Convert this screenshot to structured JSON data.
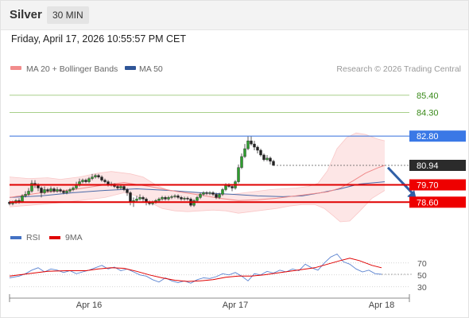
{
  "header": {
    "symbol": "Silver",
    "timeframe": "30 MIN"
  },
  "datetime": "Friday, April 17, 2026 10:55:57 PM CET",
  "legend": [
    {
      "label": "MA 20 + Bollinger Bands",
      "color": "#f28c8c"
    },
    {
      "label": "MA 50",
      "color": "#2f5597"
    }
  ],
  "copyright": "Research © 2026 Trading Central",
  "chart_data": {
    "type": "candlestick",
    "x_labels": [
      {
        "label": "Apr 16",
        "bar": 25
      },
      {
        "label": "Apr 17",
        "bar": 71
      },
      {
        "label": "Apr 18",
        "bar": 117
      }
    ],
    "ylim": [
      77.2,
      86.5
    ],
    "candles": [
      [
        78.6,
        78.5,
        78.7,
        78.4
      ],
      [
        78.5,
        78.55,
        78.7,
        78.4
      ],
      [
        78.55,
        78.7,
        78.8,
        78.5
      ],
      [
        78.7,
        78.6,
        78.85,
        78.5
      ],
      [
        78.6,
        79.0,
        79.1,
        78.55
      ],
      [
        79.0,
        79.1,
        79.3,
        78.9
      ],
      [
        79.1,
        79.3,
        79.5,
        79.0
      ],
      [
        79.3,
        79.8,
        80.0,
        79.2
      ],
      [
        79.8,
        79.7,
        80.0,
        79.5
      ],
      [
        79.7,
        79.5,
        79.8,
        79.3
      ],
      [
        79.5,
        79.2,
        79.6,
        78.9
      ],
      [
        79.2,
        79.4,
        79.6,
        79.1
      ],
      [
        79.4,
        79.3,
        79.5,
        79.2
      ],
      [
        79.3,
        79.45,
        79.6,
        79.2
      ],
      [
        79.45,
        79.3,
        79.55,
        79.2
      ],
      [
        79.3,
        79.4,
        79.55,
        79.2
      ],
      [
        79.4,
        79.3,
        79.5,
        79.2
      ],
      [
        79.3,
        79.2,
        79.4,
        79.1
      ],
      [
        79.2,
        79.3,
        79.4,
        79.1
      ],
      [
        79.3,
        79.4,
        79.5,
        79.2
      ],
      [
        79.4,
        79.5,
        79.6,
        79.3
      ],
      [
        79.5,
        79.7,
        79.9,
        79.4
      ],
      [
        79.7,
        79.9,
        80.1,
        79.6
      ],
      [
        79.9,
        80.0,
        80.1,
        79.8
      ],
      [
        80.0,
        79.9,
        80.1,
        79.8
      ],
      [
        79.9,
        80.1,
        80.2,
        79.8
      ],
      [
        80.1,
        80.2,
        80.4,
        80.0
      ],
      [
        80.2,
        80.3,
        80.4,
        80.1
      ],
      [
        80.3,
        80.2,
        80.4,
        80.1
      ],
      [
        80.2,
        80.0,
        80.3,
        79.9
      ],
      [
        80.0,
        79.9,
        80.1,
        79.8
      ],
      [
        79.9,
        79.7,
        80.0,
        79.6
      ],
      [
        79.7,
        79.75,
        79.9,
        79.6
      ],
      [
        79.75,
        79.6,
        79.8,
        79.5
      ],
      [
        79.6,
        79.5,
        79.7,
        79.4
      ],
      [
        79.5,
        79.6,
        79.7,
        79.4
      ],
      [
        79.6,
        79.4,
        79.7,
        79.3
      ],
      [
        79.4,
        79.2,
        79.5,
        79.0
      ],
      [
        79.2,
        78.6,
        79.3,
        78.4
      ],
      [
        78.6,
        78.7,
        78.9,
        78.3
      ],
      [
        78.7,
        78.8,
        79.0,
        78.6
      ],
      [
        78.8,
        78.9,
        79.1,
        78.7
      ],
      [
        78.9,
        78.8,
        79.0,
        78.6
      ],
      [
        78.8,
        78.6,
        78.9,
        78.4
      ],
      [
        78.6,
        78.5,
        78.7,
        78.4
      ],
      [
        78.5,
        78.6,
        78.7,
        78.4
      ],
      [
        78.6,
        78.7,
        78.8,
        78.5
      ],
      [
        78.7,
        78.8,
        78.9,
        78.6
      ],
      [
        78.8,
        78.9,
        79.0,
        78.7
      ],
      [
        78.9,
        78.8,
        79.0,
        78.7
      ],
      [
        78.8,
        78.9,
        79.0,
        78.7
      ],
      [
        78.9,
        78.95,
        79.05,
        78.8
      ],
      [
        78.95,
        79.0,
        79.1,
        78.85
      ],
      [
        79.0,
        78.9,
        79.1,
        78.8
      ],
      [
        78.9,
        78.8,
        79.0,
        78.7
      ],
      [
        78.8,
        78.85,
        78.95,
        78.7
      ],
      [
        78.85,
        78.8,
        78.95,
        78.7
      ],
      [
        78.8,
        78.4,
        78.9,
        78.3
      ],
      [
        78.4,
        78.7,
        78.8,
        78.3
      ],
      [
        78.7,
        78.9,
        79.0,
        78.6
      ],
      [
        78.9,
        79.1,
        79.2,
        78.8
      ],
      [
        79.1,
        79.2,
        79.3,
        79.0
      ],
      [
        79.2,
        79.15,
        79.3,
        79.05
      ],
      [
        79.15,
        79.2,
        79.3,
        79.05
      ],
      [
        79.2,
        79.1,
        79.3,
        79.0
      ],
      [
        79.1,
        78.9,
        79.2,
        78.8
      ],
      [
        78.9,
        79.1,
        79.2,
        78.8
      ],
      [
        79.1,
        79.4,
        79.5,
        79.0
      ],
      [
        79.4,
        79.7,
        79.8,
        79.3
      ],
      [
        79.7,
        79.6,
        79.8,
        79.5
      ],
      [
        79.6,
        79.5,
        79.7,
        79.3
      ],
      [
        79.5,
        79.9,
        80.0,
        79.4
      ],
      [
        79.9,
        80.8,
        81.0,
        79.8
      ],
      [
        80.8,
        81.5,
        81.7,
        80.7
      ],
      [
        81.5,
        82.0,
        82.3,
        81.4
      ],
      [
        82.0,
        82.5,
        82.8,
        81.9
      ],
      [
        82.5,
        82.3,
        82.8,
        82.2
      ],
      [
        82.3,
        82.1,
        82.5,
        81.9
      ],
      [
        82.1,
        81.9,
        82.2,
        81.7
      ],
      [
        81.9,
        81.6,
        82.0,
        81.5
      ],
      [
        81.6,
        81.3,
        81.7,
        81.2
      ],
      [
        81.3,
        81.4,
        81.6,
        81.2
      ],
      [
        81.4,
        81.2,
        81.5,
        81.0
      ],
      [
        81.2,
        80.94,
        81.3,
        80.9
      ]
    ],
    "ma20": [
      [
        0,
        78.9
      ],
      [
        10,
        79.2
      ],
      [
        20,
        79.4
      ],
      [
        30,
        79.7
      ],
      [
        36,
        79.85
      ],
      [
        44,
        79.6
      ],
      [
        52,
        79.3
      ],
      [
        60,
        79.05
      ],
      [
        66,
        78.85
      ],
      [
        72,
        78.7
      ],
      [
        78,
        78.75
      ],
      [
        84,
        78.85
      ],
      [
        90,
        79.0
      ],
      [
        96,
        79.15
      ],
      [
        100,
        79.25
      ],
      [
        104,
        79.5
      ],
      [
        108,
        79.95
      ],
      [
        112,
        80.45
      ],
      [
        116,
        80.8
      ],
      [
        118,
        80.94
      ]
    ],
    "bb_upper": [
      [
        0,
        80.2
      ],
      [
        6,
        80.1
      ],
      [
        12,
        80.15
      ],
      [
        16,
        80.05
      ],
      [
        22,
        80.2
      ],
      [
        28,
        80.45
      ],
      [
        32,
        80.55
      ],
      [
        38,
        80.4
      ],
      [
        42,
        80.2
      ],
      [
        46,
        79.7
      ],
      [
        50,
        79.35
      ],
      [
        54,
        79.3
      ],
      [
        58,
        79.2
      ],
      [
        62,
        79.1
      ],
      [
        66,
        79.05
      ],
      [
        70,
        79.1
      ],
      [
        74,
        79.2
      ],
      [
        78,
        79.3
      ],
      [
        82,
        79.4
      ],
      [
        86,
        79.45
      ],
      [
        90,
        79.5
      ],
      [
        94,
        79.6
      ],
      [
        97,
        79.8
      ],
      [
        100,
        80.6
      ],
      [
        103,
        82.0
      ],
      [
        106,
        82.7
      ],
      [
        109,
        83.0
      ],
      [
        112,
        82.9
      ],
      [
        116,
        82.6
      ],
      [
        118,
        82.5
      ]
    ],
    "bb_lower": [
      [
        0,
        78.3
      ],
      [
        6,
        78.4
      ],
      [
        12,
        78.5
      ],
      [
        18,
        78.6
      ],
      [
        24,
        78.75
      ],
      [
        30,
        78.9
      ],
      [
        36,
        79.2
      ],
      [
        40,
        79.0
      ],
      [
        44,
        78.6
      ],
      [
        48,
        78.2
      ],
      [
        52,
        78.05
      ],
      [
        56,
        78.0
      ],
      [
        60,
        78.05
      ],
      [
        64,
        78.1
      ],
      [
        68,
        78.05
      ],
      [
        72,
        77.9
      ],
      [
        76,
        78.0
      ],
      [
        80,
        78.1
      ],
      [
        84,
        78.2
      ],
      [
        88,
        78.35
      ],
      [
        92,
        78.45
      ],
      [
        96,
        78.45
      ],
      [
        99,
        78.2
      ],
      [
        102,
        77.7
      ],
      [
        104,
        77.35
      ],
      [
        107,
        77.4
      ],
      [
        110,
        78.0
      ],
      [
        114,
        78.85
      ],
      [
        118,
        79.35
      ]
    ],
    "ma50": [
      [
        0,
        78.9
      ],
      [
        10,
        79.0
      ],
      [
        20,
        79.2
      ],
      [
        30,
        79.35
      ],
      [
        40,
        79.45
      ],
      [
        50,
        79.35
      ],
      [
        60,
        79.2
      ],
      [
        70,
        79.1
      ],
      [
        78,
        79.0
      ],
      [
        86,
        78.95
      ],
      [
        92,
        79.0
      ],
      [
        98,
        79.2
      ],
      [
        104,
        79.45
      ],
      [
        110,
        79.75
      ],
      [
        118,
        79.9
      ]
    ],
    "levels": [
      {
        "label": "85.40",
        "value": 85.4,
        "kind": "target"
      },
      {
        "label": "84.30",
        "value": 84.3,
        "kind": "target"
      },
      {
        "label": "82.80",
        "value": 82.8,
        "kind": "pivot"
      },
      {
        "label": "80.94",
        "value": 80.94,
        "kind": "last"
      },
      {
        "label": "79.70",
        "value": 79.7,
        "kind": "support"
      },
      {
        "label": "78.60",
        "value": 78.6,
        "kind": "support"
      }
    ],
    "arrow": {
      "from": [
        119,
        80.8
      ],
      "to": [
        128,
        78.75
      ],
      "direction": "down"
    },
    "rsi": {
      "legend": [
        {
          "label": "RSI",
          "color": "#4472c4"
        },
        {
          "label": "9MA",
          "color": "#e00000"
        }
      ],
      "ylim": [
        15,
        95
      ],
      "ticks": [
        {
          "label": "70",
          "value": 70
        },
        {
          "label": "50",
          "value": 50
        },
        {
          "label": "30",
          "value": 30
        }
      ],
      "rsi_points": [
        [
          0,
          45
        ],
        [
          3,
          48
        ],
        [
          5,
          52
        ],
        [
          7,
          58
        ],
        [
          9,
          62
        ],
        [
          11,
          55
        ],
        [
          13,
          60
        ],
        [
          15,
          58
        ],
        [
          17,
          54
        ],
        [
          19,
          57
        ],
        [
          21,
          52
        ],
        [
          23,
          55
        ],
        [
          25,
          58
        ],
        [
          27,
          62
        ],
        [
          29,
          66
        ],
        [
          31,
          60
        ],
        [
          33,
          63
        ],
        [
          35,
          57
        ],
        [
          37,
          60
        ],
        [
          39,
          55
        ],
        [
          41,
          50
        ],
        [
          43,
          48
        ],
        [
          45,
          42
        ],
        [
          47,
          38
        ],
        [
          49,
          45
        ],
        [
          51,
          40
        ],
        [
          53,
          37
        ],
        [
          55,
          40
        ],
        [
          57,
          36
        ],
        [
          59,
          42
        ],
        [
          61,
          45
        ],
        [
          63,
          44
        ],
        [
          65,
          47
        ],
        [
          67,
          52
        ],
        [
          69,
          50
        ],
        [
          71,
          54
        ],
        [
          73,
          48
        ],
        [
          75,
          40
        ],
        [
          77,
          52
        ],
        [
          79,
          50
        ],
        [
          81,
          56
        ],
        [
          83,
          53
        ],
        [
          85,
          58
        ],
        [
          87,
          55
        ],
        [
          89,
          60
        ],
        [
          91,
          57
        ],
        [
          93,
          68
        ],
        [
          95,
          62
        ],
        [
          97,
          58
        ],
        [
          99,
          70
        ],
        [
          101,
          80
        ],
        [
          103,
          85
        ],
        [
          105,
          72
        ],
        [
          107,
          68
        ],
        [
          109,
          60
        ],
        [
          111,
          55
        ],
        [
          113,
          58
        ],
        [
          115,
          52
        ],
        [
          117,
          51
        ]
      ],
      "rsi_tail": [
        [
          117,
          51
        ],
        [
          127,
          51
        ]
      ],
      "ma_points": [
        [
          0,
          48
        ],
        [
          6,
          52
        ],
        [
          12,
          56
        ],
        [
          18,
          57
        ],
        [
          24,
          57
        ],
        [
          28,
          60
        ],
        [
          32,
          62
        ],
        [
          36,
          61
        ],
        [
          40,
          56
        ],
        [
          44,
          50
        ],
        [
          48,
          45
        ],
        [
          52,
          41
        ],
        [
          56,
          39
        ],
        [
          60,
          40
        ],
        [
          64,
          42
        ],
        [
          68,
          46
        ],
        [
          72,
          48
        ],
        [
          76,
          48
        ],
        [
          80,
          50
        ],
        [
          84,
          53
        ],
        [
          88,
          56
        ],
        [
          92,
          59
        ],
        [
          96,
          62
        ],
        [
          100,
          68
        ],
        [
          104,
          74
        ],
        [
          107,
          78
        ],
        [
          110,
          74
        ],
        [
          114,
          66
        ],
        [
          117,
          62
        ]
      ]
    }
  }
}
